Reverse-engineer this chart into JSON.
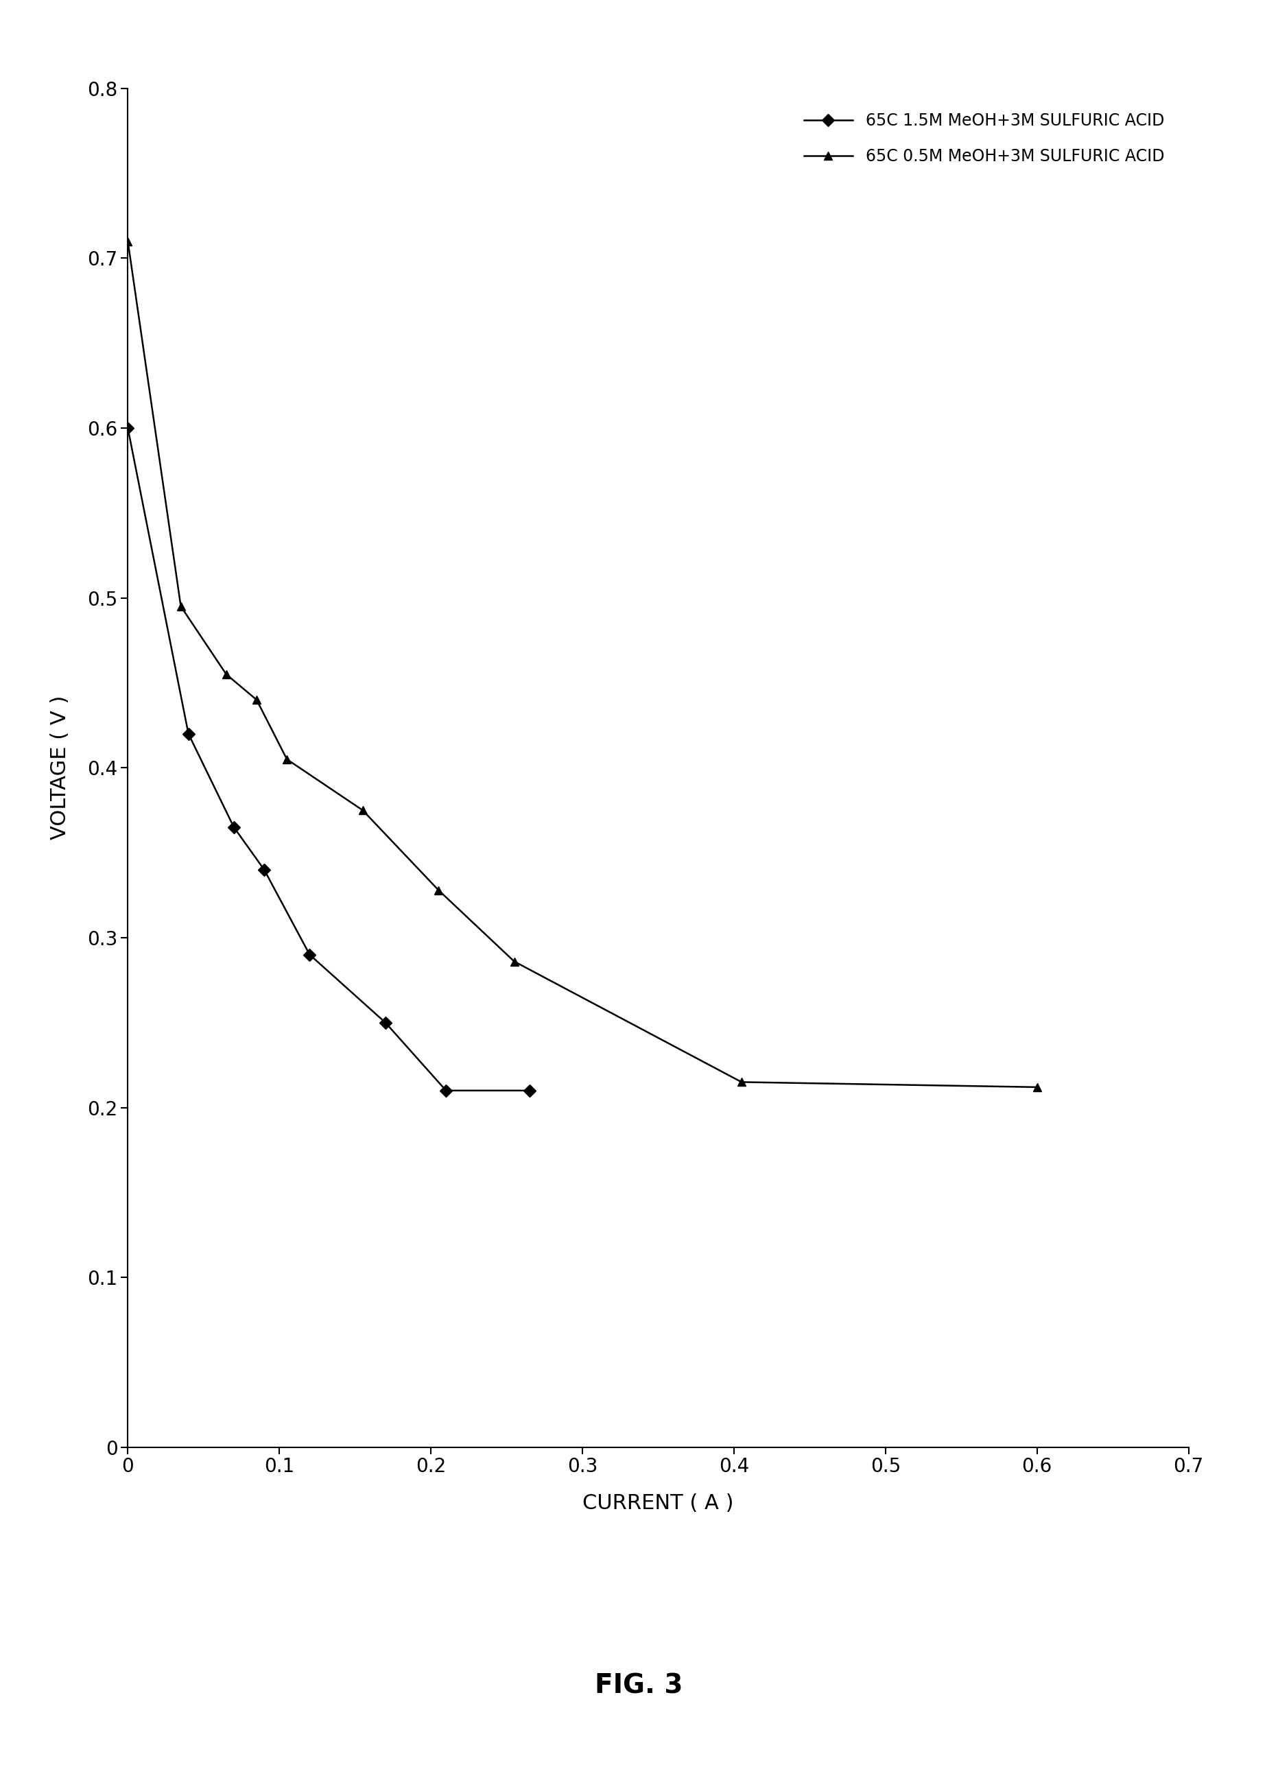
{
  "series1_label": "65C 1.5M MeOH+3M SULFURIC ACID",
  "series2_label": "65C 0.5M MeOH+3M SULFURIC ACID",
  "series1_x": [
    0.0,
    0.04,
    0.07,
    0.09,
    0.12,
    0.17,
    0.21,
    0.265
  ],
  "series1_y": [
    0.6,
    0.42,
    0.365,
    0.34,
    0.29,
    0.25,
    0.21,
    0.21
  ],
  "series2_x": [
    0.0,
    0.035,
    0.065,
    0.085,
    0.105,
    0.155,
    0.205,
    0.255,
    0.405,
    0.6
  ],
  "series2_y": [
    0.71,
    0.495,
    0.455,
    0.44,
    0.405,
    0.375,
    0.328,
    0.286,
    0.215,
    0.212
  ],
  "xlabel": "CURRENT ( A )",
  "ylabel": "VOLTAGE ( V )",
  "caption": "FIG. 3",
  "xlim": [
    0,
    0.7
  ],
  "ylim": [
    0,
    0.8
  ],
  "xticks": [
    0,
    0.1,
    0.2,
    0.3,
    0.4,
    0.5,
    0.6,
    0.7
  ],
  "yticks": [
    0,
    0.1,
    0.2,
    0.3,
    0.4,
    0.5,
    0.6,
    0.7,
    0.8
  ],
  "background_color": "#ffffff",
  "line_color": "#000000",
  "marker1": "D",
  "marker2": "^",
  "marker_size": 9,
  "line_width": 1.8,
  "xlabel_fontsize": 22,
  "ylabel_fontsize": 22,
  "tick_fontsize": 20,
  "legend_fontsize": 17,
  "caption_fontsize": 28
}
